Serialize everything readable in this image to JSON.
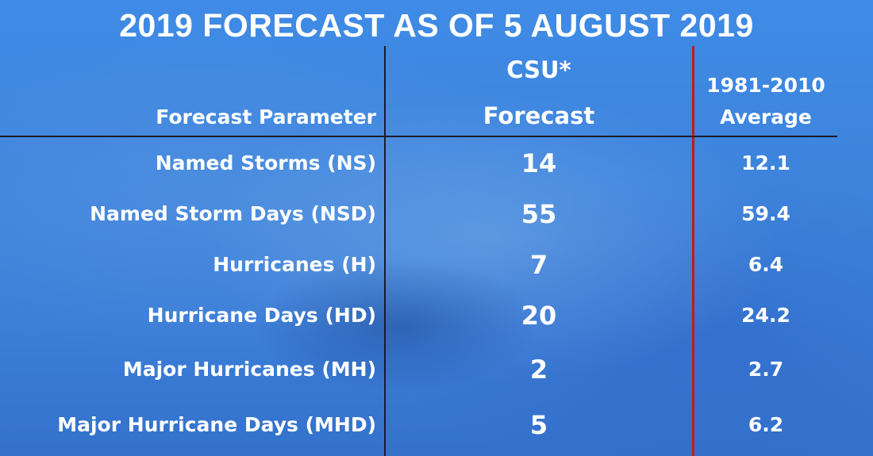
{
  "title": "2019 FORECAST AS OF 5 AUGUST 2019",
  "header": {
    "parameter": "Forecast Parameter",
    "csu_line1": "CSU*",
    "csu_line2": "Forecast",
    "avg_line1": "1981-2010",
    "avg_line2": "Average"
  },
  "rows": [
    {
      "parameter": "Named Storms (NS)",
      "forecast": "14",
      "average": "12.1"
    },
    {
      "parameter": "Named Storm Days (NSD)",
      "forecast": "55",
      "average": "59.4"
    },
    {
      "parameter": "Hurricanes (H)",
      "forecast": "7",
      "average": "6.4"
    },
    {
      "parameter": "Hurricane Days (HD)",
      "forecast": "20",
      "average": "24.2"
    },
    {
      "parameter": "Major Hurricanes (MH)",
      "forecast": "2",
      "average": "2.7"
    },
    {
      "parameter": "Major Hurricane Days (MHD)",
      "forecast": "5",
      "average": "6.2"
    }
  ],
  "colors": {
    "divider": "#1b1b2a",
    "accent_divider": "#c81818",
    "text": "#ffffff"
  }
}
